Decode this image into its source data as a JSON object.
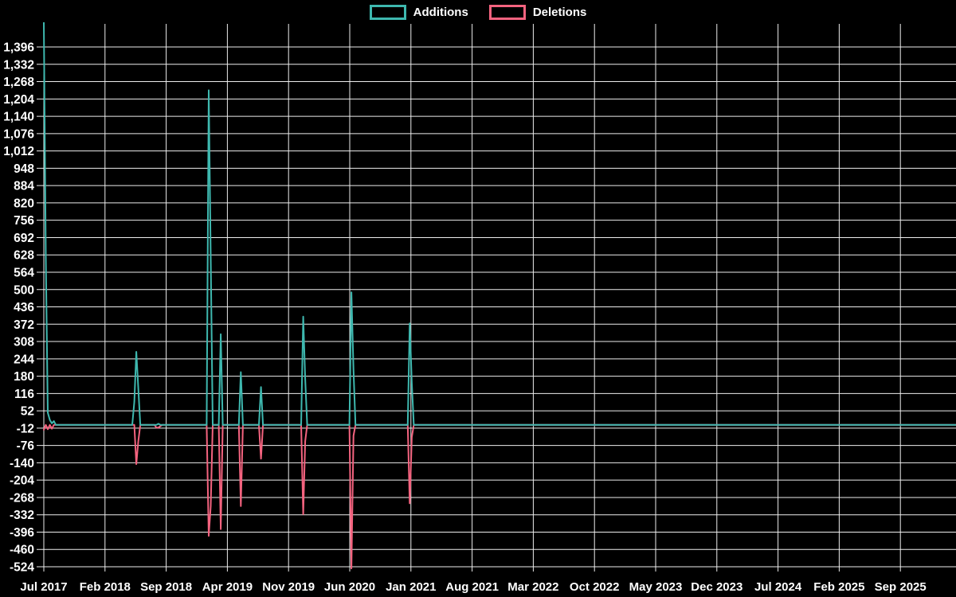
{
  "chart_data": {
    "type": "line",
    "title": "",
    "background": "#000000",
    "text_color": "#FFFFFF",
    "gridline_color": "#EDEDED",
    "grid": true,
    "legend_position": "top-center",
    "legend": [
      {
        "label": "Additions",
        "color": "#3EB8AF"
      },
      {
        "label": "Deletions",
        "color": "#F4637F"
      }
    ],
    "x_tick_labels": [
      "Jul 2017",
      "Feb 2018",
      "Sep 2018",
      "Apr 2019",
      "Nov 2019",
      "Jun 2020",
      "Jan 2021",
      "Aug 2021",
      "Mar 2022",
      "Oct 2022",
      "May 2023",
      "Dec 2023",
      "Jul 2024",
      "Feb 2025",
      "Sep 2025"
    ],
    "x_tick_interval_months": 7,
    "y_tick_values": [
      1396,
      1332,
      1268,
      1204,
      1140,
      1076,
      1012,
      948,
      884,
      820,
      756,
      692,
      628,
      564,
      500,
      436,
      372,
      308,
      244,
      180,
      116,
      52,
      -12,
      -76,
      -140,
      -204,
      -268,
      -332,
      -396,
      -460,
      -524
    ],
    "y_tick_labels": [
      "1,396",
      "1,332",
      "1,268",
      "1,204",
      "1,140",
      "1,076",
      "1,012",
      "948",
      "884",
      "820",
      "756",
      "692",
      "628",
      "564",
      "500",
      "436",
      "372",
      "308",
      "244",
      "180",
      "116",
      "52",
      "-12",
      "-76",
      "-140",
      "-204",
      "-268",
      "-332",
      "-396",
      "-460",
      "-524"
    ],
    "ylim": [
      -560,
      1487
    ],
    "series_unit": "weeks",
    "total_weeks": 455,
    "weeks_per_tick": 30.43,
    "series": [
      {
        "name": "Additions",
        "color": "#3EB8AF",
        "spikes": [
          [
            0,
            1490
          ],
          [
            1,
            620
          ],
          [
            2,
            45
          ],
          [
            3,
            18
          ],
          [
            4,
            6
          ],
          [
            5,
            14
          ],
          [
            45,
            85
          ],
          [
            46,
            270
          ],
          [
            47,
            135
          ],
          [
            57,
            4
          ],
          [
            82,
            1236
          ],
          [
            83,
            620
          ],
          [
            88,
            335
          ],
          [
            98,
            195
          ],
          [
            108,
            140
          ],
          [
            129,
            400
          ],
          [
            130,
            170
          ],
          [
            153,
            490
          ],
          [
            154,
            205
          ],
          [
            182,
            375
          ],
          [
            183,
            155
          ]
        ]
      },
      {
        "name": "Deletions",
        "color": "#F4637F",
        "spikes": [
          [
            0,
            -18
          ],
          [
            2,
            -16
          ],
          [
            4,
            -14
          ],
          [
            46,
            -145
          ],
          [
            47,
            -60
          ],
          [
            56,
            -10
          ],
          [
            57,
            -10
          ],
          [
            58,
            -4
          ],
          [
            82,
            -410
          ],
          [
            83,
            -300
          ],
          [
            88,
            -385
          ],
          [
            98,
            -300
          ],
          [
            108,
            -125
          ],
          [
            129,
            -330
          ],
          [
            130,
            -60
          ],
          [
            153,
            -530
          ],
          [
            154,
            -40
          ],
          [
            182,
            -290
          ],
          [
            183,
            -45
          ]
        ]
      }
    ]
  }
}
